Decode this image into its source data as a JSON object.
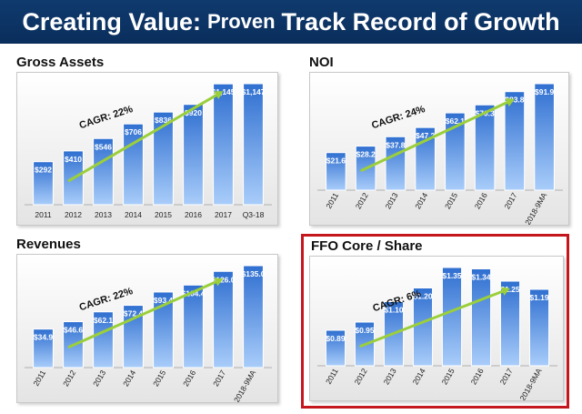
{
  "header": {
    "title_part1": "Creating Value:",
    "title_part2": "Proven",
    "title_part3": "Track Record of Growth"
  },
  "colors": {
    "banner": "#0a2e5c",
    "bar_dark": "#2f6fd0",
    "bar_light": "#a9cdfa",
    "trend_arrow": "#9bcf3a",
    "highlight_border": "#c4161c"
  },
  "chart_data": [
    {
      "type": "bar",
      "title": "Gross Assets",
      "categories": [
        "2011",
        "2012",
        "2013",
        "2014",
        "2015",
        "2016",
        "2017",
        "Q3-18"
      ],
      "values": [
        292,
        410,
        546,
        706,
        836,
        920,
        1145,
        1147
      ],
      "labels": [
        "$292",
        "$410",
        "$546",
        "$706",
        "$836",
        "$920",
        "$1,145",
        "$1,147"
      ],
      "annotation": "CAGR: 22%",
      "rotate_ticks": false,
      "ylim": [
        0,
        1147
      ]
    },
    {
      "type": "bar",
      "title": "NOI",
      "categories": [
        "2011",
        "2012",
        "2013",
        "2014",
        "2015",
        "2016",
        "2017",
        "2018-9MA"
      ],
      "values": [
        21.6,
        28.2,
        37.8,
        47.2,
        62.1,
        70.3,
        83.8,
        91.9
      ],
      "labels": [
        "$21.6",
        "$28.2",
        "$37.8",
        "$47.2",
        "$62.1",
        "$70.3",
        "$83.8",
        "$91.9"
      ],
      "annotation": "CAGR: 24%",
      "rotate_ticks": true,
      "ylim": [
        0,
        91.9
      ]
    },
    {
      "type": "bar",
      "title": "Revenues",
      "categories": [
        "2011",
        "2012",
        "2013",
        "2014",
        "2015",
        "2016",
        "2017",
        "2018-9MA"
      ],
      "values": [
        34.9,
        46.6,
        62.1,
        72.4,
        93.4,
        104.4,
        126.0,
        135.0
      ],
      "labels": [
        "$34.9",
        "$46.6",
        "$62.1",
        "$72.4",
        "$93.4",
        "$104.4",
        "$126.0",
        "$135.0"
      ],
      "annotation": "CAGR: 22%",
      "rotate_ticks": true,
      "ylim": [
        0,
        135.0
      ]
    },
    {
      "type": "bar",
      "title": "FFO Core / Share",
      "categories": [
        "2011",
        "2012",
        "2013",
        "2014",
        "2015",
        "2016",
        "2017",
        "2018-9MA"
      ],
      "values": [
        0.89,
        0.95,
        1.1,
        1.2,
        1.35,
        1.34,
        1.25,
        1.19
      ],
      "labels": [
        "$0.89",
        "$0.95",
        "$1.10",
        "$1.20",
        "$1.35",
        "$1.34",
        "$1.25",
        "$1.19"
      ],
      "annotation": "CAGR: 6%",
      "rotate_ticks": true,
      "ylim": [
        0.75,
        1.35
      ]
    }
  ]
}
